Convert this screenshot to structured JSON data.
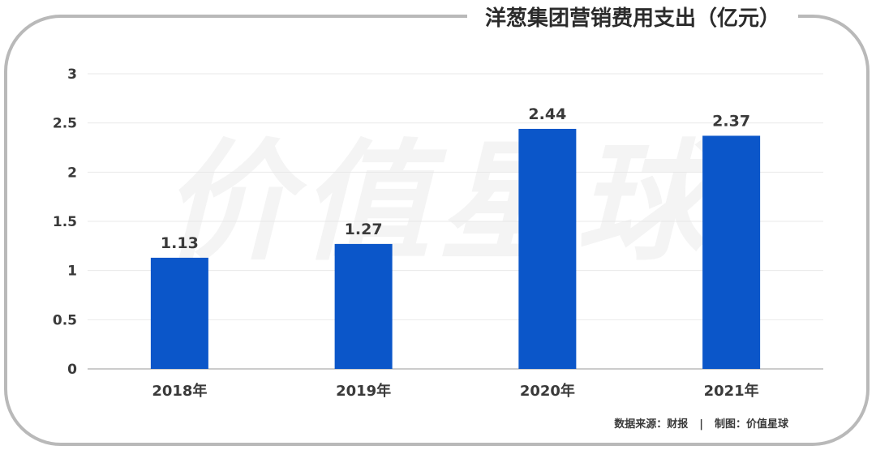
{
  "title": "洋葱集团营销费用支出（亿元）",
  "watermark": "价值星球",
  "footer": {
    "source": "数据来源：财报",
    "separator": "|",
    "credit": "制图：价值星球"
  },
  "colors": {
    "bar": "#0b56c9",
    "grid": "#e9e9e9",
    "axis": "#bcbcbc",
    "frame": "#b9b9b9",
    "text": "#3a3a3a"
  },
  "chart_data": {
    "type": "bar",
    "title": "洋葱集团营销费用支出（亿元）",
    "categories": [
      "2018年",
      "2019年",
      "2020年",
      "2021年"
    ],
    "values": [
      1.13,
      1.27,
      2.44,
      2.37
    ],
    "value_labels": [
      "1.13",
      "1.27",
      "2.44",
      "2.37"
    ],
    "ylim": [
      0,
      3
    ],
    "yticks": [
      0,
      0.5,
      1,
      1.5,
      2,
      2.5,
      3
    ],
    "ytick_labels": [
      "0",
      "0.5",
      "1",
      "1.5",
      "2",
      "2.5",
      "3"
    ],
    "xlabel": "",
    "ylabel": "",
    "grid": true,
    "legend": "none"
  }
}
